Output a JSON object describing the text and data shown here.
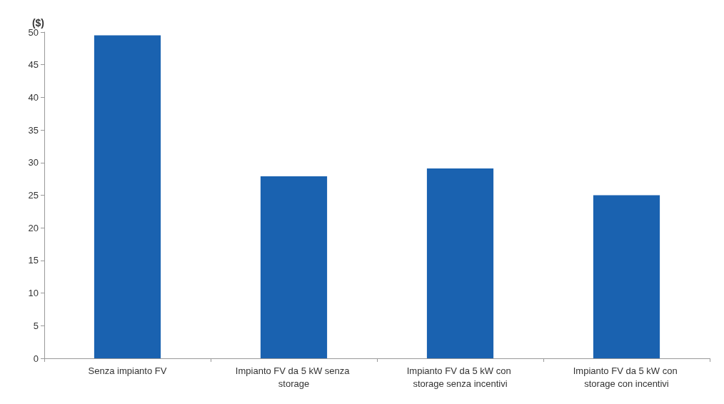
{
  "chart_data": {
    "type": "bar",
    "ylabel": "($)",
    "categories": [
      "Senza impianto FV",
      "Impianto FV da 5 kW senza storage",
      "Impianto FV da 5 kW con storage senza incentivi",
      "Impianto FV da 5 kW con storage con incentivi"
    ],
    "values": [
      49.5,
      27.9,
      29.1,
      25.0
    ],
    "color": "#1a62b0",
    "ylim": [
      0,
      50
    ],
    "yticks": [
      0,
      5,
      10,
      15,
      20,
      25,
      30,
      35,
      40,
      45,
      50
    ]
  }
}
